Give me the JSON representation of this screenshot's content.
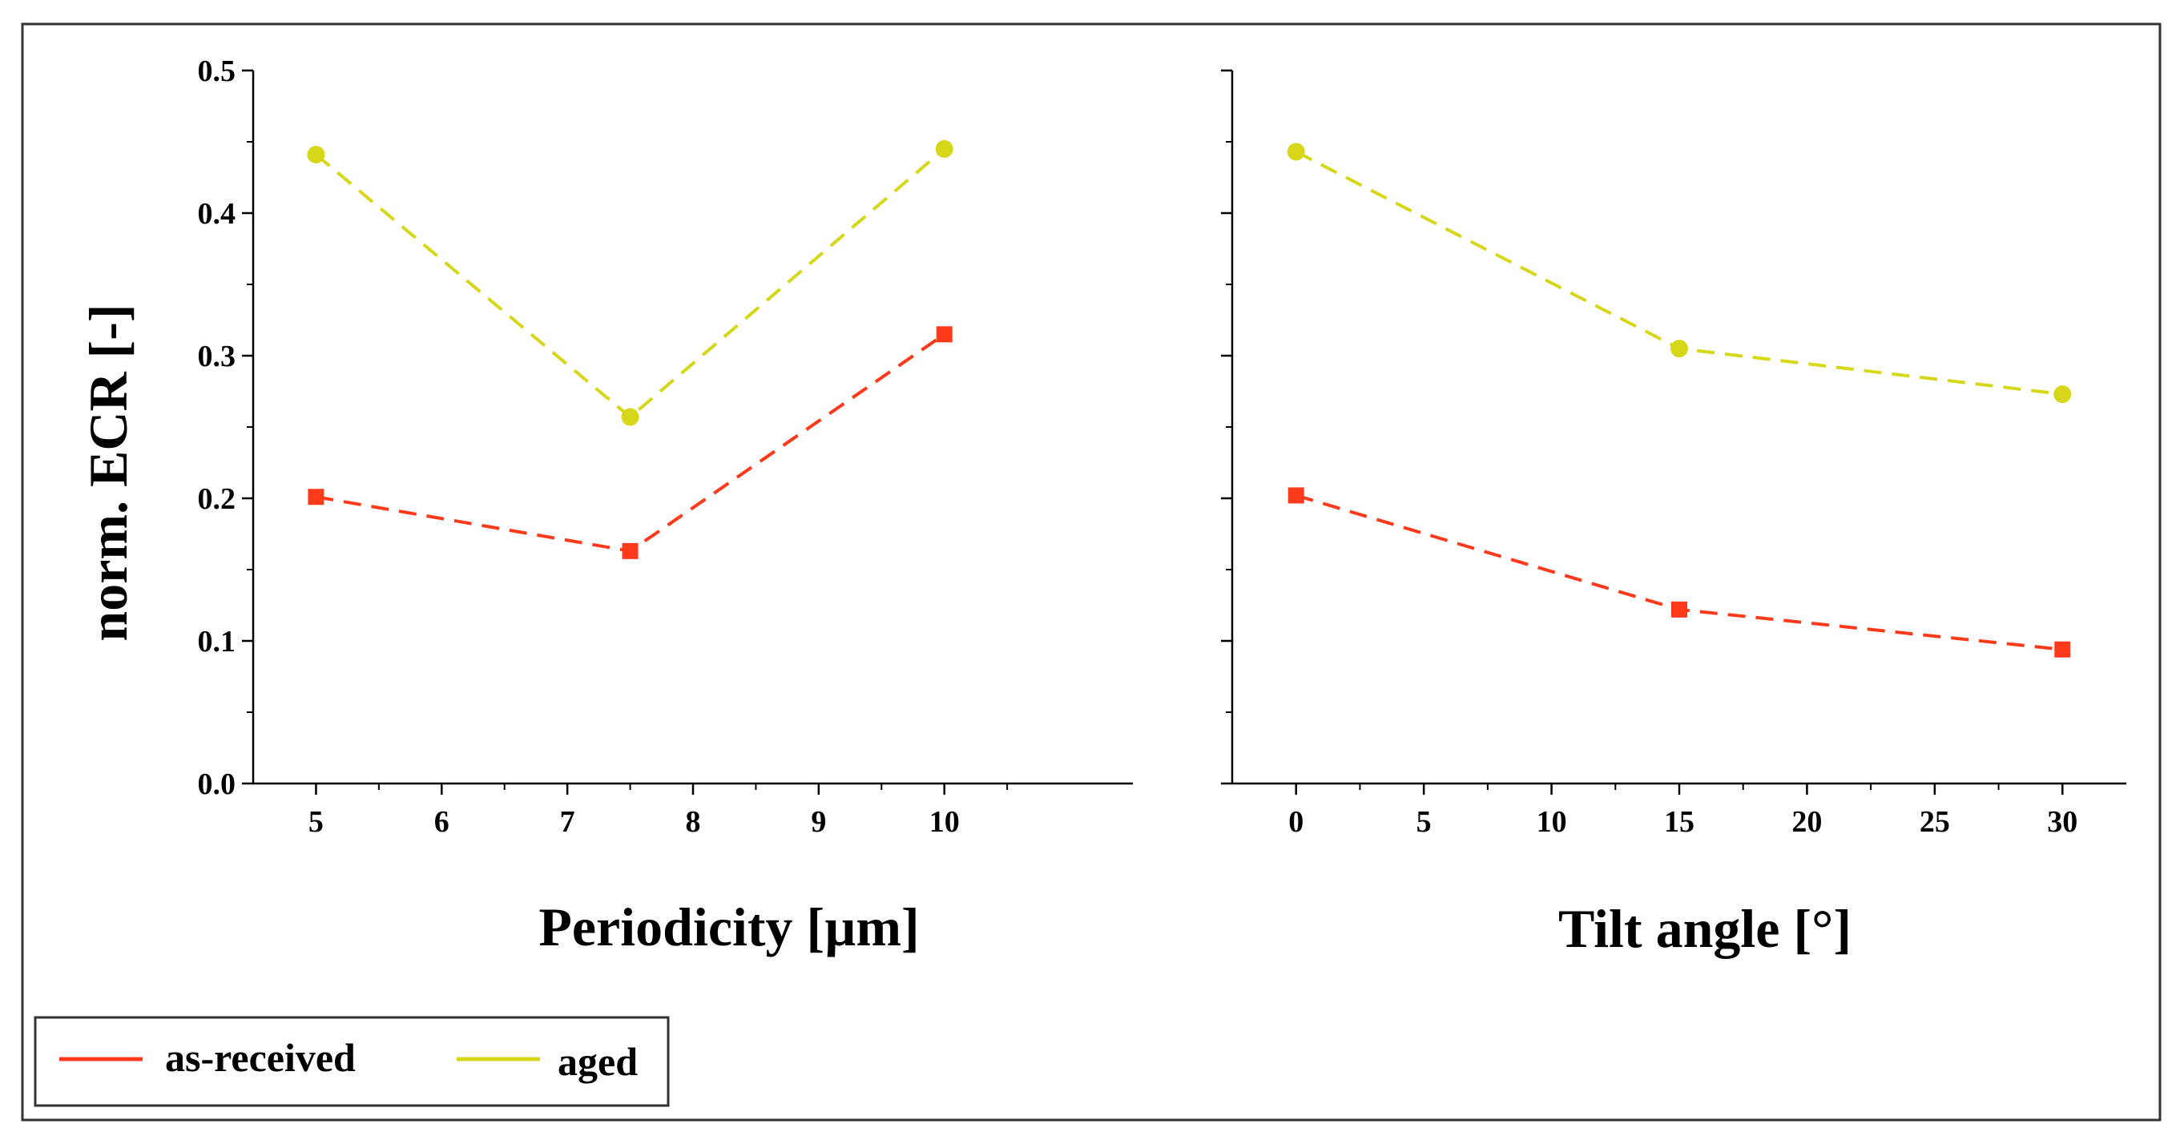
{
  "colors": {
    "as_received": "#ff3a1a",
    "aged": "#d7d71a",
    "axis": "#000000",
    "frame": "#333333"
  },
  "legend": {
    "items": [
      {
        "label": "as-received",
        "color_key": "as_received"
      },
      {
        "label": "aged",
        "color_key": "aged"
      }
    ]
  },
  "chart_data": [
    {
      "type": "line",
      "title": "",
      "xlabel": "Periodicity [µm]",
      "ylabel": "norm. ECR [-]",
      "xlim": [
        4.5,
        11.5
      ],
      "ylim": [
        0,
        0.5
      ],
      "xticks": [
        5,
        6,
        7,
        8,
        9,
        10
      ],
      "xtick_labels": [
        "5",
        "6",
        "7",
        "8",
        "9",
        "10"
      ],
      "yticks": [
        0,
        0.1,
        0.2,
        0.3,
        0.4,
        0.5
      ],
      "ytick_labels": [
        "0.0",
        "0.1",
        "0.2",
        "0.3",
        "0.4",
        "0.5"
      ],
      "grid": false,
      "series": [
        {
          "name": "as-received",
          "marker": "square",
          "x": [
            5,
            7.5,
            10
          ],
          "values": [
            0.201,
            0.163,
            0.315
          ]
        },
        {
          "name": "aged",
          "marker": "circle",
          "x": [
            5,
            7.5,
            10
          ],
          "values": [
            0.441,
            0.257,
            0.445
          ]
        }
      ]
    },
    {
      "type": "line",
      "title": "",
      "xlabel": "Tilt angle [°]",
      "ylabel": "",
      "xlim": [
        -2.5,
        32.5
      ],
      "ylim": [
        0,
        0.5
      ],
      "xticks": [
        0,
        5,
        10,
        15,
        20,
        25,
        30
      ],
      "xtick_labels": [
        "0",
        "5",
        "10",
        "15",
        "20",
        "25",
        "30"
      ],
      "yticks": [
        0,
        0.1,
        0.2,
        0.3,
        0.4,
        0.5
      ],
      "ytick_labels": [],
      "grid": false,
      "series": [
        {
          "name": "as-received",
          "marker": "square",
          "x": [
            0,
            15,
            30
          ],
          "values": [
            0.202,
            0.122,
            0.094
          ]
        },
        {
          "name": "aged",
          "marker": "circle",
          "x": [
            0,
            15,
            30
          ],
          "values": [
            0.443,
            0.305,
            0.273
          ]
        }
      ]
    }
  ]
}
